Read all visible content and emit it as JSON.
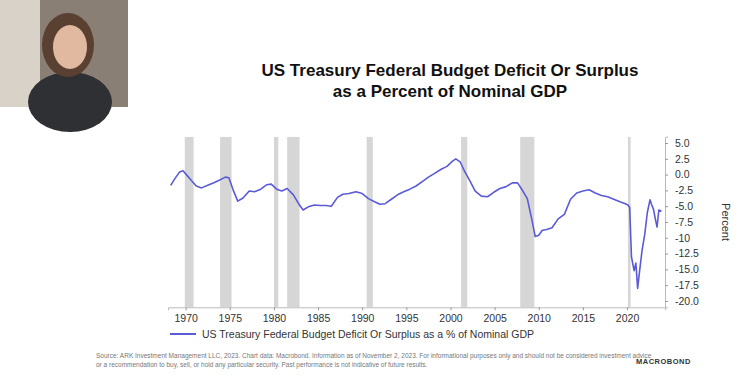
{
  "chart_data": {
    "type": "line",
    "title": "US Treasury Federal Budget Deficit Or Surplus as a Percent of Nominal GDP",
    "y_label": "Percent",
    "source": "Source: ARK Investment Management LLC, 2023. Chart data: Macrobond. Information as of November 2, 2023. For informational purposes only and should not be considered investment advice or a recommendation to buy, sell, or hold any particular security. Past performance is not indicative of future results.",
    "logo": "MACROBOND",
    "legend": "bottom",
    "grid": false,
    "x": [
      1968.3,
      1968.8,
      1969.3,
      1969.7,
      1970.2,
      1970.7,
      1971.2,
      1971.8,
      1972.5,
      1973.2,
      1973.8,
      1974.5,
      1974.9,
      1975.4,
      1975.9,
      1976.5,
      1977.2,
      1977.8,
      1978.5,
      1979.2,
      1979.7,
      1980.3,
      1980.9,
      1981.5,
      1982.2,
      1982.8,
      1983.3,
      1983.9,
      1984.6,
      1985.3,
      1985.9,
      1986.5,
      1987.2,
      1987.8,
      1988.5,
      1989.3,
      1990.0,
      1990.7,
      1991.4,
      1992.0,
      1992.6,
      1993.3,
      1994.0,
      1994.7,
      1995.4,
      1996.1,
      1996.8,
      1997.5,
      1998.2,
      1998.9,
      1999.6,
      2000.2,
      2000.6,
      2001.1,
      2001.6,
      2002.2,
      2002.8,
      2003.5,
      2004.2,
      2004.9,
      2005.6,
      2006.3,
      2007.0,
      2007.6,
      2008.2,
      2008.7,
      2009.2,
      2009.6,
      2010.0,
      2010.4,
      2010.9,
      2011.5,
      2012.2,
      2012.9,
      2013.6,
      2014.3,
      2015.0,
      2015.7,
      2016.4,
      2017.1,
      2017.8,
      2018.5,
      2019.2,
      2019.8,
      2020.1,
      2020.3,
      2020.5,
      2020.8,
      2021.0,
      2021.2,
      2021.4,
      2021.7,
      2022.0,
      2022.3,
      2022.6,
      2022.8,
      2023.0,
      2023.2,
      2023.4,
      2023.6,
      2023.9
    ],
    "series": [
      {
        "name": "US Treasury Federal Budget Deficit Or Surplus as a % of Nominal GDP",
        "color": "#5b5bd8",
        "values": [
          -1.7,
          -0.6,
          0.4,
          0.6,
          -0.2,
          -1.0,
          -1.8,
          -2.1,
          -1.7,
          -1.3,
          -0.9,
          -0.4,
          -0.5,
          -2.5,
          -4.2,
          -3.7,
          -2.6,
          -2.7,
          -2.3,
          -1.6,
          -1.5,
          -2.3,
          -2.6,
          -2.2,
          -3.2,
          -4.6,
          -5.6,
          -5.1,
          -4.8,
          -4.9,
          -4.9,
          -5.0,
          -3.6,
          -3.1,
          -3.0,
          -2.7,
          -3.0,
          -3.8,
          -4.3,
          -4.7,
          -4.6,
          -3.9,
          -3.2,
          -2.7,
          -2.3,
          -1.8,
          -1.1,
          -0.4,
          0.2,
          0.8,
          1.3,
          2.1,
          2.5,
          2.0,
          0.5,
          -1.0,
          -2.6,
          -3.4,
          -3.5,
          -2.8,
          -2.2,
          -1.9,
          -1.3,
          -1.3,
          -2.6,
          -3.8,
          -7.0,
          -9.8,
          -9.6,
          -8.8,
          -8.7,
          -8.4,
          -7.0,
          -6.3,
          -3.9,
          -2.9,
          -2.6,
          -2.4,
          -2.9,
          -3.3,
          -3.5,
          -3.9,
          -4.3,
          -4.6,
          -4.8,
          -5.2,
          -13.0,
          -15.2,
          -14.0,
          -18.0,
          -15.5,
          -12.0,
          -9.5,
          -6.0,
          -4.0,
          -4.8,
          -5.5,
          -7.0,
          -8.3,
          -5.6,
          -5.8
        ]
      }
    ],
    "shaded_periods": [
      [
        1969.9,
        1970.9
      ],
      [
        1973.9,
        1975.2
      ],
      [
        1980.0,
        1980.5
      ],
      [
        1981.5,
        1982.9
      ],
      [
        1990.5,
        1991.2
      ],
      [
        2001.2,
        2001.9
      ],
      [
        2007.9,
        2009.5
      ],
      [
        2020.1,
        2020.4
      ]
    ],
    "xlim": [
      1968.0,
      2024.3
    ],
    "xticks": [
      1970,
      1975,
      1980,
      1985,
      1990,
      1995,
      2000,
      2005,
      2010,
      2015,
      2020
    ],
    "ylim": [
      -21,
      6
    ],
    "yticks": [
      {
        "value": 5,
        "label": "5.0"
      },
      {
        "value": 2.5,
        "label": "2.5"
      },
      {
        "value": 0,
        "label": "0.0"
      },
      {
        "value": -2.5,
        "label": "-2.5"
      },
      {
        "value": -5,
        "label": "-5.0"
      },
      {
        "value": -7.5,
        "label": "-7.5"
      },
      {
        "value": -10,
        "label": "-10"
      },
      {
        "value": -12.5,
        "label": "-12.5"
      },
      {
        "value": -15,
        "label": "-15.0"
      },
      {
        "value": -17.5,
        "label": "-17.5"
      },
      {
        "value": -20,
        "label": "-20.0"
      }
    ]
  }
}
